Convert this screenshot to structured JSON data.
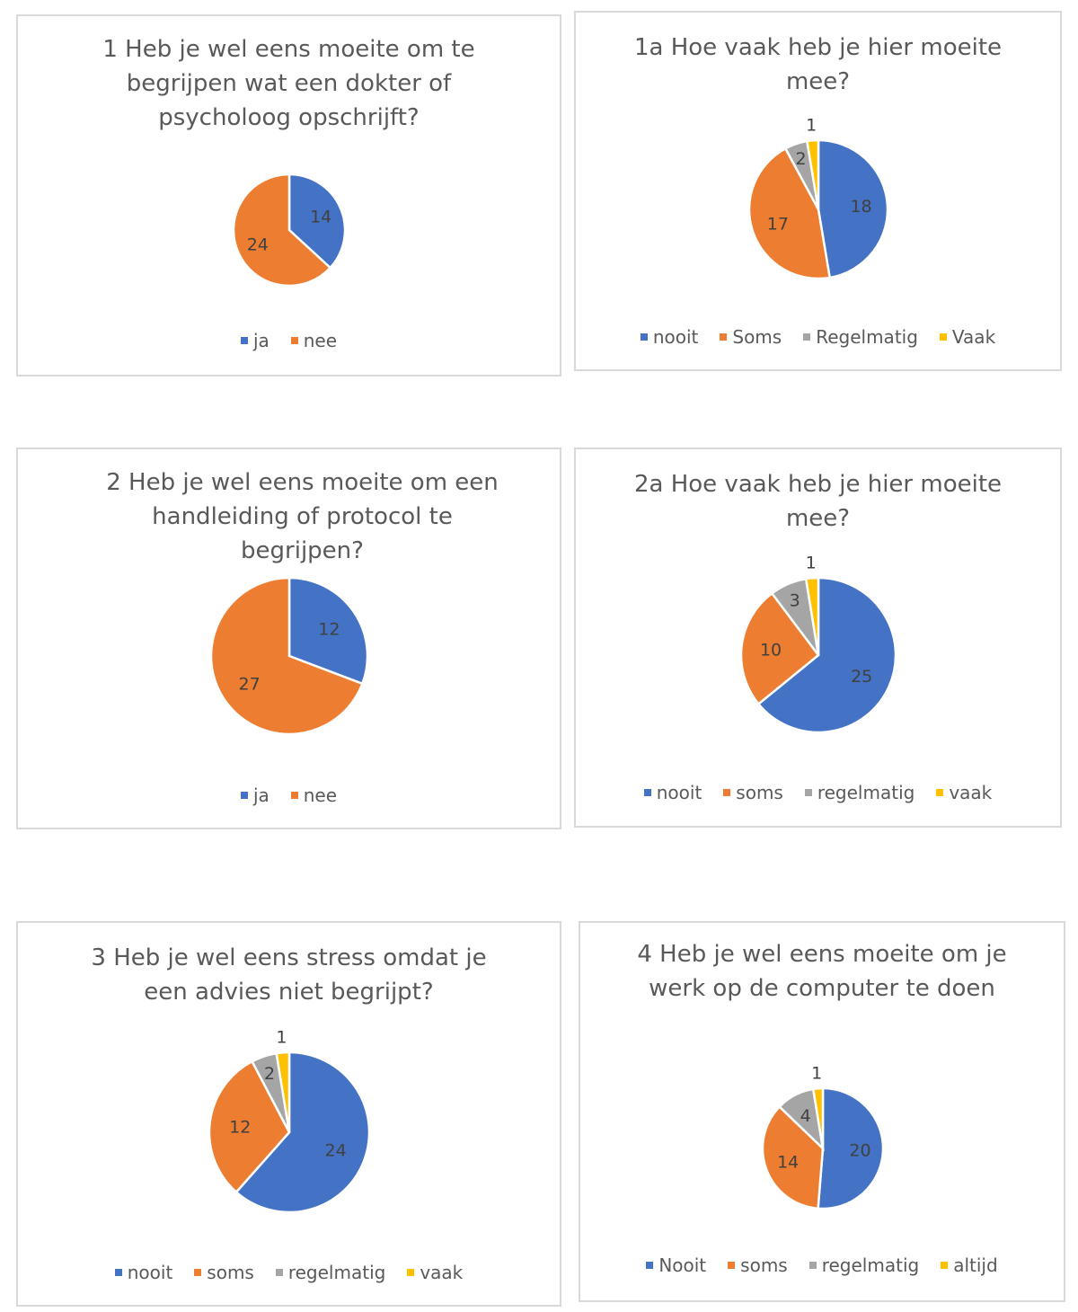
{
  "colors": {
    "blue": "#4472c4",
    "orange": "#ed7d31",
    "gray": "#a5a5a5",
    "yellow": "#ffc000"
  },
  "chart_data": [
    {
      "type": "pie",
      "title": "1 Heb je wel eens moeite om te begrijpen wat een dokter of psycholoog opschrijft?",
      "categories": [
        "ja",
        "nee"
      ],
      "values": [
        14,
        24
      ],
      "legend": "bottom"
    },
    {
      "type": "pie",
      "title": "1a Hoe vaak heb je hier moeite mee?",
      "categories": [
        "nooit",
        "Soms",
        "Regelmatig",
        "Vaak"
      ],
      "values": [
        18,
        17,
        2,
        1
      ],
      "legend": "bottom"
    },
    {
      "type": "pie",
      "title": "2 Heb je wel eens moeite om een handleiding of protocol te begrijpen?",
      "categories": [
        "ja",
        "nee"
      ],
      "values": [
        12,
        27
      ],
      "legend": "bottom"
    },
    {
      "type": "pie",
      "title": "2a Hoe vaak heb je hier moeite mee?",
      "categories": [
        "nooit",
        "soms",
        "regelmatig",
        "vaak"
      ],
      "values": [
        25,
        10,
        3,
        1
      ],
      "legend": "bottom"
    },
    {
      "type": "pie",
      "title": "3 Heb je wel eens stress omdat je een advies niet begrijpt?",
      "categories": [
        "nooit",
        "soms",
        "regelmatig",
        "vaak"
      ],
      "values": [
        24,
        12,
        2,
        1
      ],
      "legend": "bottom"
    },
    {
      "type": "pie",
      "title": "4 Heb je wel eens moeite om je werk op de computer te doen",
      "categories": [
        "Nooit",
        "soms",
        "regelmatig",
        "altijd"
      ],
      "values": [
        20,
        14,
        4,
        1
      ],
      "legend": "bottom"
    }
  ]
}
